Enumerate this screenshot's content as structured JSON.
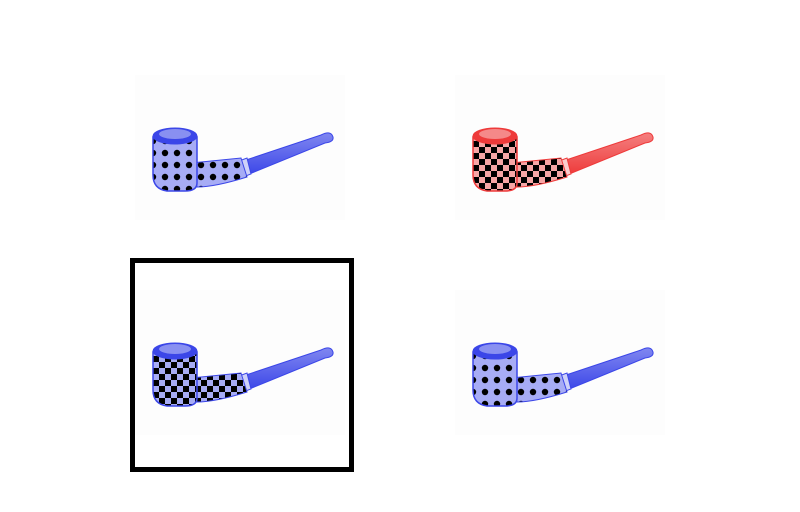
{
  "options": [
    {
      "id": "option-1",
      "icon": "blue-pipe-dotted-icon",
      "color": "#3b46e8",
      "pattern": "dots",
      "selected": false
    },
    {
      "id": "option-2",
      "icon": "red-pipe-checkered-icon",
      "color": "#ee3a3a",
      "pattern": "checker",
      "selected": false
    },
    {
      "id": "option-3",
      "icon": "blue-pipe-checkered-icon",
      "color": "#3b46e8",
      "pattern": "checker",
      "selected": true
    },
    {
      "id": "option-4",
      "icon": "blue-pipe-dotted-icon",
      "color": "#3b46e8",
      "pattern": "dots",
      "selected": false
    }
  ]
}
